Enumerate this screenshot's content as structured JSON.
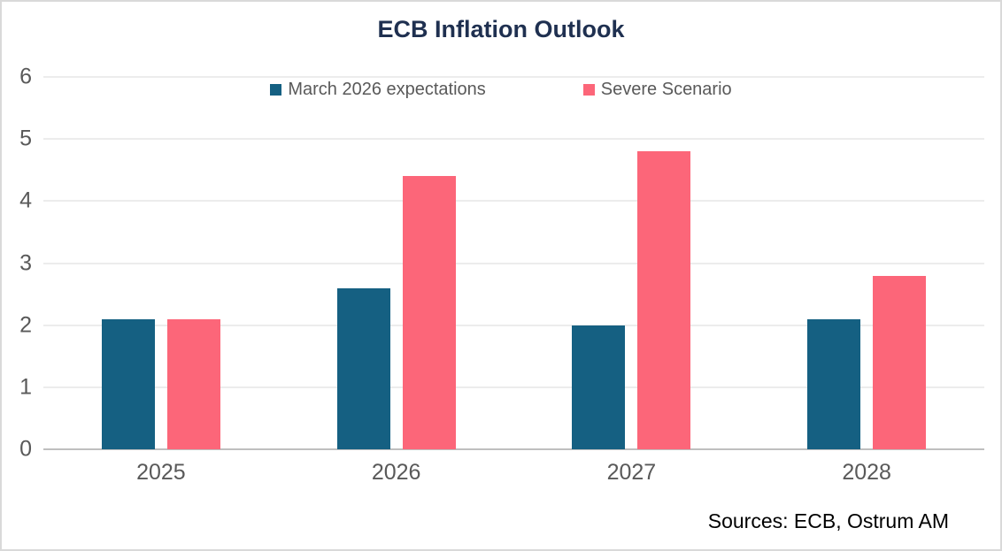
{
  "chart_data": {
    "type": "bar",
    "title": "ECB Inflation Outlook",
    "categories": [
      "2025",
      "2026",
      "2027",
      "2028"
    ],
    "series": [
      {
        "name": "March 2026 expectations",
        "color": "#156082",
        "values": [
          2.1,
          2.6,
          2.0,
          2.1
        ]
      },
      {
        "name": "Severe Scenario",
        "color": "#FC6679",
        "values": [
          2.1,
          4.4,
          4.8,
          2.8
        ]
      }
    ],
    "xlabel": "",
    "ylabel": "",
    "ylim": [
      0,
      6
    ],
    "yticks": [
      0,
      1,
      2,
      3,
      4,
      5,
      6
    ],
    "grid": true,
    "legend_position": "top-center",
    "annotation": "Sources: ECB, Ostrum AM"
  },
  "colors": {
    "series_1": "#156082",
    "series_2": "#FC6679",
    "title_text": "#1F3050",
    "axis_text": "#595959",
    "legend_text": "#595959",
    "gridline": "#D9D9D9",
    "axis_line": "#BFBFBF",
    "frame_border": "#D9D9D9",
    "background": "#FFFFFF",
    "source_text": "#000000"
  }
}
